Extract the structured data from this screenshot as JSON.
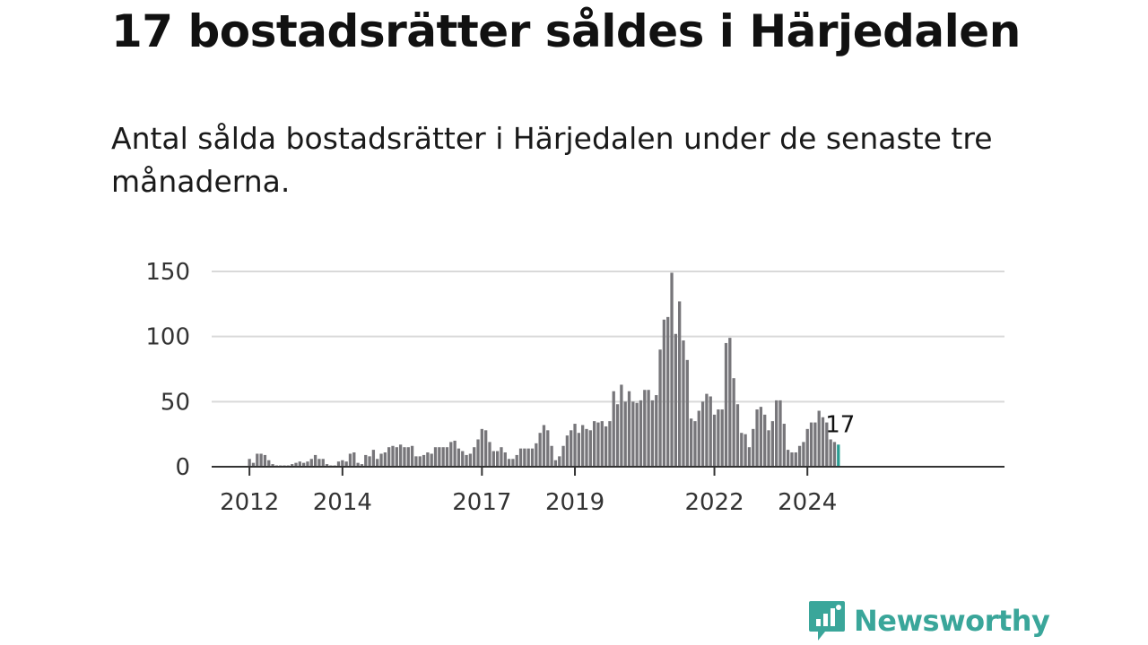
{
  "title": "17 bostadsrätter såldes i Härjedalen",
  "subtitle": "Antal sålda bostadsrätter i Härjedalen under de senaste tre månaderna.",
  "brand": {
    "name": "Newsworthy",
    "color": "#3aa69a"
  },
  "chart_data": {
    "type": "bar",
    "title": "17 bostadsrätter såldes i Härjedalen",
    "subtitle": "Antal sålda bostadsrätter i Härjedalen under de senaste tre månaderna.",
    "xlabel": "",
    "ylabel": "",
    "ylim": [
      0,
      150
    ],
    "yticks": [
      0,
      50,
      100,
      150
    ],
    "xticks": [
      "2012",
      "2014",
      "2017",
      "2019",
      "2022",
      "2024"
    ],
    "grid": true,
    "bar_color": "#77767a",
    "highlight_color": "#2a9d92",
    "highlight_label": "17",
    "start": "2012-01",
    "values": [
      6,
      3,
      10,
      10,
      9,
      5,
      2,
      1,
      1,
      1,
      1,
      2,
      3,
      4,
      3,
      4,
      6,
      9,
      6,
      6,
      2,
      1,
      1,
      4,
      5,
      4,
      10,
      11,
      3,
      2,
      9,
      8,
      13,
      6,
      10,
      11,
      15,
      16,
      15,
      17,
      15,
      15,
      16,
      8,
      8,
      9,
      11,
      10,
      15,
      15,
      15,
      15,
      19,
      20,
      14,
      12,
      9,
      10,
      15,
      21,
      29,
      28,
      19,
      12,
      12,
      15,
      11,
      6,
      6,
      9,
      14,
      14,
      14,
      14,
      18,
      26,
      32,
      28,
      16,
      5,
      8,
      16,
      24,
      28,
      33,
      26,
      32,
      29,
      28,
      35,
      34,
      35,
      31,
      35,
      58,
      48,
      63,
      50,
      58,
      50,
      49,
      51,
      59,
      59,
      51,
      55,
      90,
      113,
      115,
      149,
      102,
      127,
      97,
      82,
      37,
      35,
      43,
      50,
      56,
      54,
      40,
      44,
      44,
      95,
      99,
      68,
      48,
      26,
      25,
      15,
      29,
      44,
      46,
      40,
      28,
      35,
      51,
      51,
      33,
      13,
      11,
      11,
      16,
      19,
      29,
      34,
      34,
      43,
      38,
      34,
      21,
      19,
      17
    ]
  }
}
